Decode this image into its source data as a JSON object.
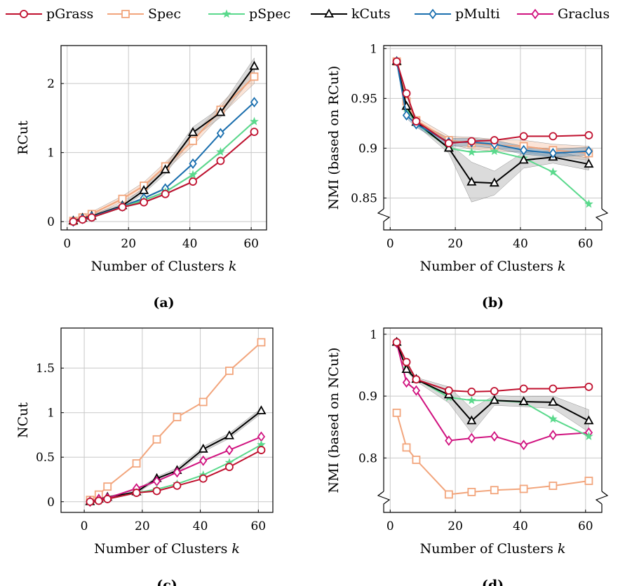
{
  "colors": {
    "pGrass": "#c0102e",
    "Spec": "#f2a57c",
    "pSpec": "#5ad98c",
    "kCuts": "#000000",
    "pMulti": "#1a6faf",
    "Graclus": "#d0127f"
  },
  "legend": [
    {
      "name": "pGrass",
      "marker": "circle"
    },
    {
      "name": "Spec",
      "marker": "square"
    },
    {
      "name": "pSpec",
      "marker": "star"
    },
    {
      "name": "kCuts",
      "marker": "triangle"
    },
    {
      "name": "pMulti",
      "marker": "diamond"
    },
    {
      "name": "Graclus",
      "marker": "diamond"
    }
  ],
  "chart_data": [
    {
      "type": "line",
      "caption": "(a)",
      "xlabel": "Number of Clusters",
      "xlabel_var": "k",
      "ylabel": "RCut",
      "xlim": [
        -2,
        65
      ],
      "ylim": [
        -0.12,
        2.55
      ],
      "xticks": [
        0,
        20,
        40,
        60
      ],
      "yticks": [
        0,
        1,
        2
      ],
      "ytick_labels": [
        "0",
        "1",
        "2"
      ],
      "axis_break": false,
      "x": [
        2,
        5,
        8,
        18,
        25,
        32,
        41,
        50,
        61
      ],
      "series": [
        {
          "name": "Spec",
          "values": [
            0.01,
            0.06,
            0.11,
            0.33,
            0.52,
            0.8,
            1.17,
            1.62,
            2.1
          ],
          "band": [
            0.03,
            0.03,
            0.03,
            0.04,
            0.05,
            0.06,
            0.07,
            0.08,
            0.1
          ]
        },
        {
          "name": "kCuts",
          "values": [
            0.01,
            0.05,
            0.08,
            0.23,
            0.45,
            0.75,
            1.29,
            1.58,
            2.25
          ],
          "band": [
            0.01,
            0.01,
            0.02,
            0.03,
            0.04,
            0.06,
            0.08,
            0.07,
            0.12
          ]
        },
        {
          "name": "pMulti",
          "values": [
            0.0,
            0.04,
            0.07,
            0.22,
            0.34,
            0.48,
            0.84,
            1.28,
            1.73
          ],
          "band": [
            0,
            0,
            0,
            0.01,
            0.01,
            0.01,
            0.01,
            0.01,
            0.01
          ]
        },
        {
          "name": "pSpec",
          "values": [
            0.0,
            0.03,
            0.06,
            0.21,
            0.31,
            0.43,
            0.68,
            1.01,
            1.45
          ],
          "band": [
            0,
            0,
            0,
            0.01,
            0.01,
            0.01,
            0.01,
            0.01,
            0.01
          ]
        },
        {
          "name": "pGrass",
          "values": [
            0.0,
            0.03,
            0.06,
            0.21,
            0.28,
            0.4,
            0.58,
            0.88,
            1.3
          ],
          "band": [
            0,
            0,
            0,
            0.01,
            0.01,
            0.01,
            0.01,
            0.01,
            0.01
          ]
        }
      ]
    },
    {
      "type": "line",
      "caption": "(b)",
      "xlabel": "Number of Clusters",
      "xlabel_var": "k",
      "ylabel": "NMI (based on RCut)",
      "xlim": [
        -2,
        65
      ],
      "ylim": [
        0.818,
        1.003
      ],
      "xticks": [
        0,
        20,
        40,
        60
      ],
      "yticks": [
        0.85,
        0.9,
        0.95,
        1
      ],
      "ytick_labels": [
        "0.85",
        "0.9",
        "0.95",
        "1"
      ],
      "axis_break": true,
      "x": [
        2,
        5,
        8,
        18,
        25,
        32,
        41,
        50,
        61
      ],
      "series": [
        {
          "name": "Spec",
          "values": [
            0.987,
            0.947,
            0.928,
            0.908,
            0.905,
            0.903,
            0.902,
            0.898,
            0.895
          ],
          "band": [
            0.002,
            0.003,
            0.003,
            0.004,
            0.006,
            0.006,
            0.006,
            0.006,
            0.007
          ]
        },
        {
          "name": "pSpec",
          "values": [
            0.987,
            0.94,
            0.925,
            0.9,
            0.896,
            0.897,
            0.89,
            0.876,
            0.844
          ],
          "band": [
            0,
            0,
            0,
            0,
            0,
            0,
            0,
            0,
            0
          ]
        },
        {
          "name": "kCuts",
          "values": [
            0.987,
            0.942,
            0.926,
            0.9,
            0.866,
            0.865,
            0.888,
            0.891,
            0.884
          ],
          "band": [
            0.002,
            0.003,
            0.003,
            0.005,
            0.02,
            0.012,
            0.008,
            0.006,
            0.006
          ]
        },
        {
          "name": "pMulti",
          "values": [
            0.987,
            0.933,
            0.924,
            0.906,
            0.906,
            0.904,
            0.898,
            0.895,
            0.897
          ],
          "band": [
            0.002,
            0.003,
            0.003,
            0.004,
            0.004,
            0.004,
            0.004,
            0.004,
            0.004
          ]
        },
        {
          "name": "pGrass",
          "values": [
            0.987,
            0.955,
            0.927,
            0.905,
            0.907,
            0.908,
            0.912,
            0.912,
            0.913
          ],
          "band": [
            0,
            0,
            0,
            0,
            0,
            0,
            0,
            0,
            0
          ]
        }
      ]
    },
    {
      "type": "line",
      "caption": "(c)",
      "xlabel": "Number of Clusters",
      "xlabel_var": "k",
      "ylabel": "NCut",
      "xlim": [
        -8,
        65
      ],
      "ylim": [
        -0.12,
        1.95
      ],
      "xticks": [
        0,
        20,
        40,
        60
      ],
      "yticks": [
        0,
        0.5,
        1,
        1.5
      ],
      "ytick_labels": [
        "0",
        "0.5",
        "1",
        "1.5"
      ],
      "axis_break": false,
      "x": [
        2,
        5,
        8,
        18,
        25,
        32,
        41,
        50,
        61
      ],
      "series": [
        {
          "name": "Spec",
          "values": [
            0.02,
            0.08,
            0.17,
            0.43,
            0.7,
            0.95,
            1.12,
            1.47,
            1.79
          ],
          "band": [
            0,
            0,
            0,
            0,
            0,
            0,
            0,
            0,
            0
          ]
        },
        {
          "name": "kCuts",
          "values": [
            0.0,
            0.03,
            0.05,
            0.11,
            0.26,
            0.35,
            0.59,
            0.74,
            1.02
          ],
          "band": [
            0.01,
            0.01,
            0.01,
            0.02,
            0.02,
            0.03,
            0.03,
            0.03,
            0.03
          ]
        },
        {
          "name": "Graclus",
          "values": [
            0.0,
            0.03,
            0.04,
            0.15,
            0.23,
            0.33,
            0.46,
            0.58,
            0.73
          ],
          "band": [
            0,
            0,
            0,
            0,
            0,
            0,
            0,
            0,
            0
          ]
        },
        {
          "name": "pSpec",
          "values": [
            0.0,
            0.01,
            0.03,
            0.1,
            0.14,
            0.2,
            0.3,
            0.44,
            0.64
          ],
          "band": [
            0,
            0,
            0,
            0,
            0,
            0,
            0,
            0,
            0
          ]
        },
        {
          "name": "pGrass",
          "values": [
            0.0,
            0.01,
            0.03,
            0.1,
            0.12,
            0.18,
            0.26,
            0.39,
            0.58
          ],
          "band": [
            0,
            0,
            0,
            0,
            0,
            0,
            0,
            0,
            0
          ]
        }
      ]
    },
    {
      "type": "line",
      "caption": "(d)",
      "xlabel": "Number of Clusters",
      "xlabel_var": "k",
      "ylabel": "NMI (based on NCut)",
      "xlim": [
        -2,
        65
      ],
      "ylim": [
        0.712,
        1.01
      ],
      "xticks": [
        0,
        20,
        40,
        60
      ],
      "yticks": [
        0.8,
        0.9,
        1
      ],
      "ytick_labels": [
        "0.8",
        "0.9",
        "1"
      ],
      "axis_break": true,
      "x": [
        2,
        5,
        8,
        18,
        25,
        32,
        41,
        50,
        61
      ],
      "series": [
        {
          "name": "Spec",
          "values": [
            0.873,
            0.817,
            0.797,
            0.741,
            0.745,
            0.748,
            0.75,
            0.755,
            0.763
          ],
          "band": [
            0,
            0,
            0,
            0,
            0,
            0,
            0,
            0,
            0
          ]
        },
        {
          "name": "Graclus",
          "values": [
            0.986,
            0.922,
            0.909,
            0.828,
            0.832,
            0.835,
            0.821,
            0.837,
            0.841
          ],
          "band": [
            0,
            0,
            0,
            0,
            0,
            0,
            0,
            0,
            0
          ]
        },
        {
          "name": "pSpec",
          "values": [
            0.987,
            0.945,
            0.928,
            0.898,
            0.893,
            0.893,
            0.89,
            0.863,
            0.835
          ],
          "band": [
            0,
            0,
            0,
            0,
            0,
            0,
            0,
            0,
            0
          ]
        },
        {
          "name": "kCuts",
          "values": [
            0.987,
            0.943,
            0.927,
            0.902,
            0.86,
            0.893,
            0.891,
            0.89,
            0.86
          ],
          "band": [
            0.002,
            0.003,
            0.003,
            0.013,
            0.02,
            0.008,
            0.008,
            0.01,
            0.018
          ]
        },
        {
          "name": "pGrass",
          "values": [
            0.987,
            0.955,
            0.927,
            0.909,
            0.907,
            0.908,
            0.912,
            0.912,
            0.915
          ],
          "band": [
            0,
            0,
            0,
            0,
            0,
            0,
            0,
            0,
            0
          ]
        }
      ]
    }
  ]
}
